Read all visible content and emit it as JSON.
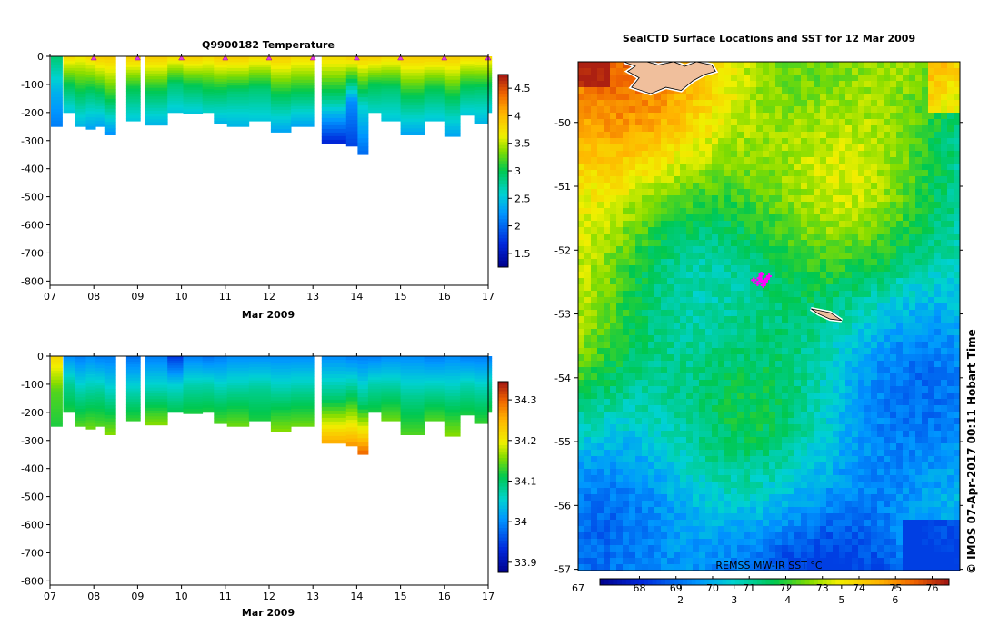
{
  "chart_data": [
    {
      "type": "heatmap",
      "title": "Q9900182  Temperature",
      "xlabel": "Mar 2009",
      "ylabel": "",
      "x_ticks": [
        "07",
        "08",
        "09",
        "10",
        "11",
        "12",
        "13",
        "14",
        "15",
        "16",
        "17"
      ],
      "x_range": [
        7,
        17
      ],
      "y_ticks": [
        0,
        -100,
        -200,
        -300,
        -400,
        -500,
        -600,
        -700,
        -800
      ],
      "y_range": [
        -815,
        0
      ],
      "colorbar": {
        "ticks": [
          1.5,
          2,
          2.5,
          3,
          3.5,
          4,
          4.5
        ],
        "range": [
          1.25,
          4.75
        ]
      },
      "profiles": [
        {
          "t": 7.02,
          "w": 0.26,
          "bottom": -250,
          "values": [
            2.9,
            2.4,
            2.1
          ]
        },
        {
          "t": 7.3,
          "w": 0.26,
          "bottom": -200,
          "values": [
            3.8,
            3.0,
            2.5
          ]
        },
        {
          "t": 7.56,
          "w": 0.26,
          "bottom": -250,
          "values": [
            3.7,
            3.0,
            2.4
          ]
        },
        {
          "t": 7.82,
          "w": 0.22,
          "bottom": -260,
          "values": [
            3.8,
            2.9,
            2.3
          ]
        },
        {
          "t": 8.04,
          "w": 0.2,
          "bottom": -250,
          "values": [
            3.9,
            3.0,
            2.3
          ]
        },
        {
          "t": 8.24,
          "w": 0.26,
          "bottom": -280,
          "values": [
            3.9,
            3.1,
            2.2
          ]
        },
        {
          "t": 8.74,
          "w": 0.32,
          "bottom": -230,
          "values": [
            3.9,
            3.0,
            2.5
          ]
        },
        {
          "t": 9.16,
          "w": 0.52,
          "bottom": -245,
          "values": [
            3.9,
            3.0,
            2.4
          ]
        },
        {
          "t": 9.68,
          "w": 0.36,
          "bottom": -200,
          "values": [
            3.8,
            2.9,
            2.5
          ]
        },
        {
          "t": 10.04,
          "w": 0.44,
          "bottom": -205,
          "values": [
            3.9,
            3.0,
            2.5
          ]
        },
        {
          "t": 10.48,
          "w": 0.26,
          "bottom": -200,
          "values": [
            3.8,
            3.1,
            2.6
          ]
        },
        {
          "t": 10.74,
          "w": 0.3,
          "bottom": -240,
          "values": [
            3.9,
            3.0,
            2.4
          ]
        },
        {
          "t": 11.04,
          "w": 0.5,
          "bottom": -250,
          "values": [
            3.9,
            2.9,
            2.4
          ]
        },
        {
          "t": 11.54,
          "w": 0.5,
          "bottom": -230,
          "values": [
            3.8,
            2.9,
            2.5
          ]
        },
        {
          "t": 12.04,
          "w": 0.46,
          "bottom": -270,
          "values": [
            3.9,
            3.0,
            2.3
          ]
        },
        {
          "t": 12.5,
          "w": 0.52,
          "bottom": -250,
          "values": [
            3.8,
            3.0,
            2.3
          ]
        },
        {
          "t": 13.2,
          "w": 0.56,
          "bottom": -310,
          "values": [
            3.8,
            2.8,
            1.6
          ]
        },
        {
          "t": 13.76,
          "w": 0.26,
          "bottom": -320,
          "values": [
            3.9,
            2.2,
            1.8
          ]
        },
        {
          "t": 14.02,
          "w": 0.24,
          "bottom": -350,
          "values": [
            3.9,
            2.6,
            2.0
          ]
        },
        {
          "t": 14.26,
          "w": 0.3,
          "bottom": -200,
          "values": [
            3.9,
            3.0,
            2.6
          ]
        },
        {
          "t": 14.56,
          "w": 0.44,
          "bottom": -230,
          "values": [
            3.8,
            2.9,
            2.5
          ]
        },
        {
          "t": 15.0,
          "w": 0.54,
          "bottom": -280,
          "values": [
            3.9,
            3.0,
            2.3
          ]
        },
        {
          "t": 15.54,
          "w": 0.46,
          "bottom": -230,
          "values": [
            3.9,
            3.0,
            2.5
          ]
        },
        {
          "t": 16.0,
          "w": 0.36,
          "bottom": -285,
          "values": [
            3.9,
            3.0,
            2.3
          ]
        },
        {
          "t": 16.36,
          "w": 0.32,
          "bottom": -210,
          "values": [
            3.8,
            3.0,
            2.5
          ]
        },
        {
          "t": 16.68,
          "w": 0.3,
          "bottom": -240,
          "values": [
            3.8,
            2.9,
            2.4
          ]
        },
        {
          "t": 16.98,
          "w": 0.1,
          "bottom": -200,
          "values": [
            3.8,
            3.0,
            2.5
          ]
        }
      ],
      "markers": [
        8,
        9,
        10,
        11,
        12,
        13,
        14,
        15,
        16,
        17
      ]
    },
    {
      "type": "heatmap",
      "title": "",
      "xlabel": "Mar 2009",
      "ylabel": "",
      "x_ticks": [
        "07",
        "08",
        "09",
        "10",
        "11",
        "12",
        "13",
        "14",
        "15",
        "16",
        "17"
      ],
      "x_range": [
        7,
        17
      ],
      "y_ticks": [
        0,
        -100,
        -200,
        -300,
        -400,
        -500,
        -600,
        -700,
        -800
      ],
      "y_range": [
        -815,
        0
      ],
      "colorbar": {
        "ticks": [
          33.9,
          34,
          34.1,
          34.2,
          34.3
        ],
        "range": [
          33.875,
          34.345
        ]
      },
      "profiles": [
        {
          "t": 7.02,
          "w": 0.26,
          "bottom": -250,
          "values": [
            34.22,
            34.14,
            34.12
          ]
        },
        {
          "t": 7.3,
          "w": 0.26,
          "bottom": -200,
          "values": [
            34.0,
            34.08,
            34.12
          ]
        },
        {
          "t": 7.56,
          "w": 0.26,
          "bottom": -250,
          "values": [
            33.99,
            34.07,
            34.14
          ]
        },
        {
          "t": 7.82,
          "w": 0.22,
          "bottom": -260,
          "values": [
            34.0,
            34.08,
            34.15
          ]
        },
        {
          "t": 8.04,
          "w": 0.2,
          "bottom": -250,
          "values": [
            33.99,
            34.08,
            34.14
          ]
        },
        {
          "t": 8.24,
          "w": 0.26,
          "bottom": -280,
          "values": [
            33.99,
            34.07,
            34.16
          ]
        },
        {
          "t": 8.74,
          "w": 0.32,
          "bottom": -230,
          "values": [
            33.98,
            34.06,
            34.13
          ]
        },
        {
          "t": 9.16,
          "w": 0.52,
          "bottom": -245,
          "values": [
            33.99,
            34.07,
            34.16
          ]
        },
        {
          "t": 9.68,
          "w": 0.36,
          "bottom": -200,
          "values": [
            33.94,
            34.05,
            34.11
          ]
        },
        {
          "t": 10.04,
          "w": 0.44,
          "bottom": -205,
          "values": [
            33.99,
            34.07,
            34.12
          ]
        },
        {
          "t": 10.48,
          "w": 0.26,
          "bottom": -200,
          "values": [
            33.98,
            34.07,
            34.12
          ]
        },
        {
          "t": 10.74,
          "w": 0.3,
          "bottom": -240,
          "values": [
            33.99,
            34.07,
            34.14
          ]
        },
        {
          "t": 11.04,
          "w": 0.5,
          "bottom": -250,
          "values": [
            34.0,
            34.08,
            34.15
          ]
        },
        {
          "t": 11.54,
          "w": 0.5,
          "bottom": -230,
          "values": [
            34.0,
            34.08,
            34.12
          ]
        },
        {
          "t": 12.04,
          "w": 0.46,
          "bottom": -270,
          "values": [
            34.0,
            34.08,
            34.16
          ]
        },
        {
          "t": 12.5,
          "w": 0.52,
          "bottom": -250,
          "values": [
            34.0,
            34.08,
            34.15
          ]
        },
        {
          "t": 13.2,
          "w": 0.56,
          "bottom": -310,
          "values": [
            34.0,
            34.1,
            34.26
          ]
        },
        {
          "t": 13.76,
          "w": 0.26,
          "bottom": -320,
          "values": [
            33.99,
            34.12,
            34.27
          ]
        },
        {
          "t": 14.02,
          "w": 0.24,
          "bottom": -350,
          "values": [
            33.99,
            34.1,
            34.3
          ]
        },
        {
          "t": 14.26,
          "w": 0.3,
          "bottom": -200,
          "values": [
            33.99,
            34.07,
            34.12
          ]
        },
        {
          "t": 14.56,
          "w": 0.44,
          "bottom": -230,
          "values": [
            34.0,
            34.08,
            34.15
          ]
        },
        {
          "t": 15.0,
          "w": 0.54,
          "bottom": -280,
          "values": [
            34.0,
            34.08,
            34.14
          ]
        },
        {
          "t": 15.54,
          "w": 0.46,
          "bottom": -230,
          "values": [
            33.99,
            34.07,
            34.14
          ]
        },
        {
          "t": 16.0,
          "w": 0.36,
          "bottom": -285,
          "values": [
            34.0,
            34.08,
            34.16
          ]
        },
        {
          "t": 16.36,
          "w": 0.32,
          "bottom": -210,
          "values": [
            33.99,
            34.07,
            34.12
          ]
        },
        {
          "t": 16.68,
          "w": 0.3,
          "bottom": -240,
          "values": [
            33.99,
            34.07,
            34.13
          ]
        },
        {
          "t": 16.98,
          "w": 0.1,
          "bottom": -200,
          "values": [
            33.99,
            34.07,
            34.12
          ]
        }
      ]
    },
    {
      "type": "heatmap",
      "title": "SealCTD Surface Locations and SST for 12 Mar 2009",
      "xlabel": "",
      "ylabel": "",
      "y_ticks": [
        -50,
        -51,
        -52,
        -53,
        -54,
        -55,
        -56,
        -57
      ],
      "y_range": [
        -57.02,
        -49.05
      ],
      "sst_range_c": [
        1.5,
        6.9
      ],
      "annotation": "REMSS MW-IR SST °C",
      "colorbar": {
        "ticks_c": [
          2,
          3,
          4,
          5,
          6
        ],
        "ticks_f": [
          67,
          68,
          69,
          70,
          71,
          72,
          73,
          74,
          75,
          76
        ],
        "range_c": [
          0.5,
          7.0
        ]
      },
      "land": [
        {
          "name": "island-north",
          "outline": [
            [
              0.12,
              -49.05
            ],
            [
              0.15,
              -49.12
            ],
            [
              0.13,
              -49.2
            ],
            [
              0.16,
              -49.3
            ],
            [
              0.14,
              -49.45
            ],
            [
              0.19,
              -49.55
            ],
            [
              0.23,
              -49.45
            ],
            [
              0.27,
              -49.5
            ],
            [
              0.3,
              -49.35
            ],
            [
              0.33,
              -49.25
            ],
            [
              0.36,
              -49.2
            ],
            [
              0.35,
              -49.1
            ],
            [
              0.31,
              -49.05
            ],
            [
              0.28,
              -49.12
            ],
            [
              0.25,
              -49.05
            ],
            [
              0.21,
              -49.1
            ],
            [
              0.18,
              -49.05
            ]
          ]
        },
        {
          "name": "island-south",
          "outline": [
            [
              0.61,
              -52.92
            ],
            [
              0.66,
              -52.98
            ],
            [
              0.69,
              -53.1
            ],
            [
              0.66,
              -53.08
            ],
            [
              0.63,
              -53.0
            ]
          ]
        }
      ],
      "seal_locations": [
        {
          "lon": 0.48,
          "lat": -52.48
        },
        {
          "lon": 0.475,
          "lat": -52.44
        },
        {
          "lon": 0.49,
          "lat": -52.5
        },
        {
          "lon": 0.485,
          "lat": -52.55
        },
        {
          "lon": 0.47,
          "lat": -52.52
        },
        {
          "lon": 0.495,
          "lat": -52.45
        },
        {
          "lon": 0.46,
          "lat": -52.47
        },
        {
          "lon": 0.48,
          "lat": -52.38
        },
        {
          "lon": 0.5,
          "lat": -52.41
        }
      ]
    }
  ],
  "credit": "© IMOS 07-Apr-2017 00:11 Hobart Time"
}
